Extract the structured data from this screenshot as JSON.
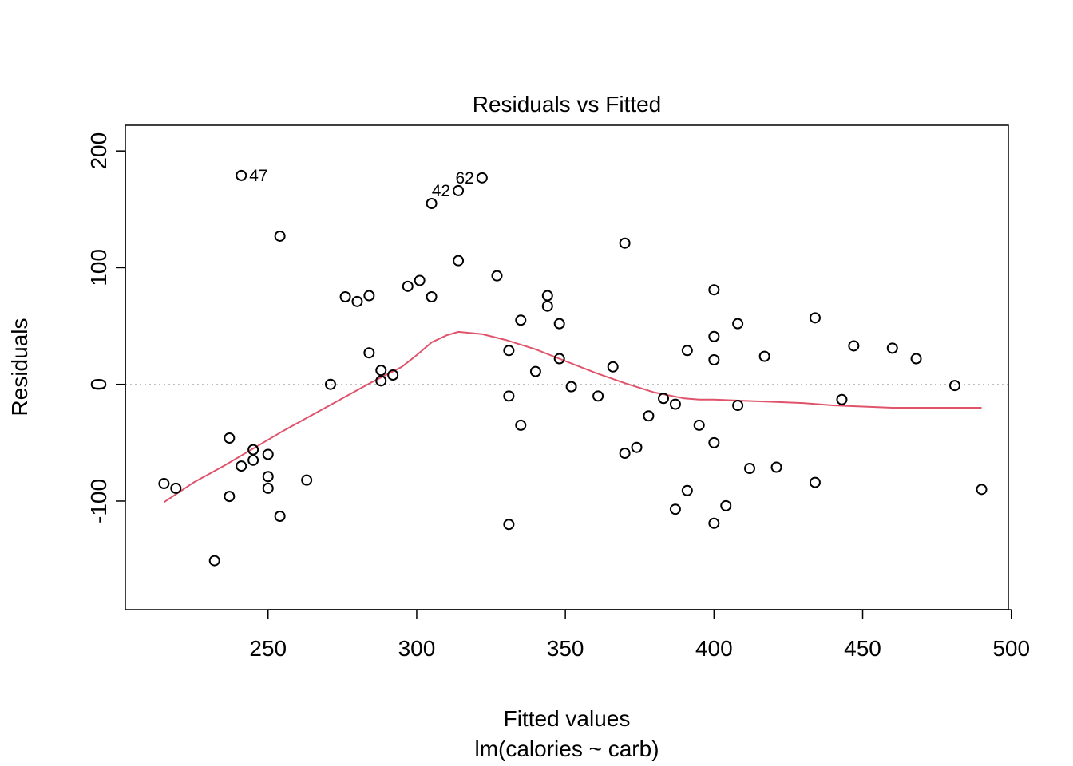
{
  "chart_data": {
    "type": "scatter",
    "title": "Residuals vs Fitted",
    "xlabel": "Fitted values",
    "subtitle": "lm(calories ~ carb)",
    "ylabel": "Residuals",
    "xlim": [
      202,
      499
    ],
    "ylim": [
      -193,
      222
    ],
    "x_ticks": [
      250,
      300,
      350,
      400,
      450,
      500
    ],
    "y_ticks": [
      -100,
      0,
      100,
      200
    ],
    "x_tick_labels": [
      "250",
      "300",
      "350",
      "400",
      "450",
      "500"
    ],
    "y_tick_labels": [
      "-100",
      "0",
      "100",
      "200"
    ],
    "reference_line": {
      "y": 0,
      "style": "dotted",
      "color": "#bebebe"
    },
    "grid": false,
    "point_color": "#000000",
    "smooth_color": "#DF536B",
    "points": [
      {
        "x": 241,
        "y": 179,
        "label": "47"
      },
      {
        "x": 322,
        "y": 177,
        "label": "62"
      },
      {
        "x": 314,
        "y": 166,
        "label": "42"
      },
      {
        "x": 305,
        "y": 155
      },
      {
        "x": 254,
        "y": 127
      },
      {
        "x": 370,
        "y": 121
      },
      {
        "x": 314,
        "y": 106
      },
      {
        "x": 327,
        "y": 93
      },
      {
        "x": 301,
        "y": 89
      },
      {
        "x": 297,
        "y": 84
      },
      {
        "x": 400,
        "y": 81
      },
      {
        "x": 344,
        "y": 76
      },
      {
        "x": 284,
        "y": 76
      },
      {
        "x": 276,
        "y": 75
      },
      {
        "x": 305,
        "y": 75
      },
      {
        "x": 280,
        "y": 71
      },
      {
        "x": 344,
        "y": 67
      },
      {
        "x": 434,
        "y": 57
      },
      {
        "x": 335,
        "y": 55
      },
      {
        "x": 348,
        "y": 52
      },
      {
        "x": 408,
        "y": 52
      },
      {
        "x": 400,
        "y": 41
      },
      {
        "x": 447,
        "y": 33
      },
      {
        "x": 460,
        "y": 31
      },
      {
        "x": 331,
        "y": 29
      },
      {
        "x": 391,
        "y": 29
      },
      {
        "x": 284,
        "y": 27
      },
      {
        "x": 417,
        "y": 24
      },
      {
        "x": 348,
        "y": 22
      },
      {
        "x": 468,
        "y": 22
      },
      {
        "x": 400,
        "y": 21
      },
      {
        "x": 366,
        "y": 15
      },
      {
        "x": 288,
        "y": 12
      },
      {
        "x": 340,
        "y": 11
      },
      {
        "x": 292,
        "y": 8
      },
      {
        "x": 288,
        "y": 3
      },
      {
        "x": 271,
        "y": 0
      },
      {
        "x": 481,
        "y": -1
      },
      {
        "x": 352,
        "y": -2
      },
      {
        "x": 331,
        "y": -10
      },
      {
        "x": 361,
        "y": -10
      },
      {
        "x": 383,
        "y": -12
      },
      {
        "x": 443,
        "y": -13
      },
      {
        "x": 387,
        "y": -17
      },
      {
        "x": 408,
        "y": -18
      },
      {
        "x": 378,
        "y": -27
      },
      {
        "x": 335,
        "y": -35
      },
      {
        "x": 395,
        "y": -35
      },
      {
        "x": 237,
        "y": -46
      },
      {
        "x": 400,
        "y": -50
      },
      {
        "x": 374,
        "y": -54
      },
      {
        "x": 245,
        "y": -56
      },
      {
        "x": 370,
        "y": -59
      },
      {
        "x": 250,
        "y": -60
      },
      {
        "x": 245,
        "y": -65
      },
      {
        "x": 241,
        "y": -70
      },
      {
        "x": 421,
        "y": -71
      },
      {
        "x": 412,
        "y": -72
      },
      {
        "x": 250,
        "y": -79
      },
      {
        "x": 263,
        "y": -82
      },
      {
        "x": 434,
        "y": -84
      },
      {
        "x": 215,
        "y": -85
      },
      {
        "x": 219,
        "y": -89
      },
      {
        "x": 250,
        "y": -89
      },
      {
        "x": 490,
        "y": -90
      },
      {
        "x": 391,
        "y": -91
      },
      {
        "x": 237,
        "y": -96
      },
      {
        "x": 404,
        "y": -104
      },
      {
        "x": 387,
        "y": -107
      },
      {
        "x": 254,
        "y": -113
      },
      {
        "x": 400,
        "y": -119
      },
      {
        "x": 331,
        "y": -120
      },
      {
        "x": 232,
        "y": -151
      }
    ],
    "smooth": {
      "x": [
        215,
        225,
        235,
        245,
        255,
        265,
        275,
        285,
        295,
        300,
        305,
        310,
        314,
        322,
        330,
        340,
        350,
        360,
        370,
        380,
        390,
        395,
        400,
        410,
        420,
        430,
        440,
        450,
        460,
        470,
        480,
        490
      ],
      "y": [
        -101,
        -84,
        -70,
        -55,
        -40,
        -26,
        -12,
        2,
        15,
        25,
        36,
        42,
        45,
        43,
        38,
        30,
        20,
        10,
        1,
        -7,
        -12,
        -13,
        -13,
        -14,
        -15,
        -16,
        -18,
        -19,
        -20,
        -20,
        -20,
        -20
      ]
    }
  }
}
